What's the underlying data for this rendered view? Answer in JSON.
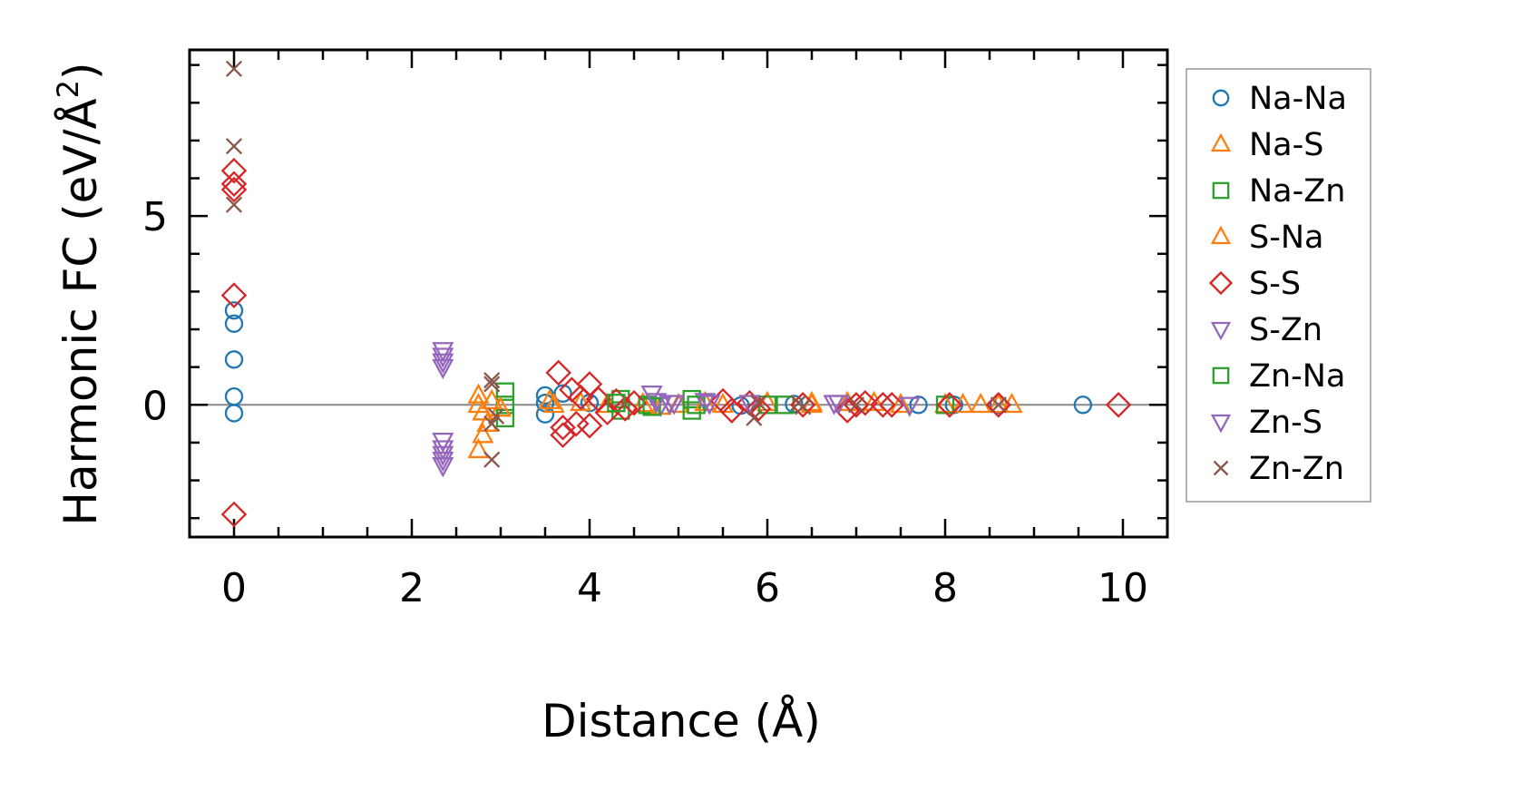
{
  "chart_data": {
    "type": "scatter",
    "xlabel": "Distance (Å)",
    "ylabel_main": "Harmonic FC (eV/Å",
    "ylabel_sup": "2",
    "ylabel_close": ")",
    "xlim": [
      -0.5,
      10.5
    ],
    "ylim": [
      -3.5,
      9.4
    ],
    "xticks": [
      0,
      2,
      4,
      6,
      8,
      10
    ],
    "yticks": [
      0,
      5
    ],
    "grid": false,
    "zero_line": true,
    "legend_position": "right",
    "series": [
      {
        "name": "Na-Na",
        "marker": "circle",
        "color": "#1f77b4",
        "x": [
          0,
          0,
          0,
          0,
          0,
          3.5,
          3.5,
          3.5,
          3.7,
          4.0,
          5.7,
          6.3,
          7.7,
          8.1,
          8.6,
          9.55
        ],
        "y": [
          2.5,
          2.15,
          1.2,
          0.22,
          -0.22,
          0.25,
          0.05,
          -0.25,
          0.3,
          0.05,
          -0.02,
          0.02,
          0.0,
          0.0,
          0.0,
          0.0
        ]
      },
      {
        "name": "Na-S",
        "marker": "triangle-up",
        "color": "#ff7f0e",
        "x": [
          2.75,
          2.75,
          2.8,
          2.75,
          2.85,
          2.8,
          3.55,
          3.9,
          4.2,
          4.6,
          5.0,
          5.5,
          6.0,
          6.5,
          6.9,
          7.5,
          8.0,
          8.2,
          8.75
        ],
        "y": [
          0.25,
          0.0,
          -0.2,
          -1.2,
          -0.5,
          -0.8,
          0.1,
          0.05,
          0.0,
          0.02,
          0.0,
          0.0,
          0.05,
          0.05,
          0.05,
          0.0,
          0.0,
          0.0,
          0.0
        ]
      },
      {
        "name": "Na-Zn",
        "marker": "square",
        "color": "#2ca02c",
        "x": [
          3.05,
          3.05,
          3.05,
          4.35,
          4.35,
          4.65,
          5.15,
          5.15,
          6.0,
          6.2,
          8.0
        ],
        "y": [
          0.35,
          0.0,
          -0.35,
          0.15,
          -0.15,
          0.0,
          0.15,
          -0.15,
          0.0,
          0.0,
          0.0
        ]
      },
      {
        "name": "S-Na",
        "marker": "triangle-up",
        "color": "#ff7f0e",
        "x": [
          2.9,
          3.0,
          3.6,
          4.8,
          5.3,
          6.5,
          7.2,
          8.4,
          8.6
        ],
        "y": [
          0.1,
          -0.1,
          0.0,
          -0.05,
          0.05,
          0.0,
          0.05,
          0.0,
          0.0
        ]
      },
      {
        "name": "S-S",
        "marker": "diamond",
        "color": "#d62728",
        "x": [
          0,
          0,
          0,
          0,
          0,
          3.65,
          3.7,
          3.7,
          3.8,
          3.85,
          3.9,
          4.0,
          4.0,
          4.1,
          4.2,
          4.3,
          4.4,
          4.5,
          5.5,
          5.6,
          5.8,
          5.9,
          6.4,
          6.9,
          7.0,
          7.1,
          7.3,
          7.4,
          8.05,
          8.6,
          9.95
        ],
        "y": [
          6.2,
          5.85,
          5.7,
          2.9,
          -2.9,
          0.85,
          -0.6,
          -0.8,
          0.4,
          -0.5,
          0.2,
          0.55,
          -0.55,
          0.15,
          -0.2,
          0.1,
          -0.1,
          0.05,
          0.1,
          -0.15,
          0.05,
          -0.1,
          0.0,
          -0.15,
          0.0,
          0.05,
          0.0,
          0.0,
          0.0,
          0.0,
          0.0
        ]
      },
      {
        "name": "S-Zn",
        "marker": "triangle-down",
        "color": "#9467bd",
        "x": [
          2.35,
          2.35,
          2.35,
          2.35,
          2.35,
          2.35,
          2.35,
          2.35,
          2.35,
          4.7,
          4.8,
          4.9,
          5.3,
          5.8,
          6.8,
          7.6
        ],
        "y": [
          1.45,
          1.3,
          1.15,
          1.0,
          -0.95,
          -1.15,
          -1.3,
          -1.45,
          -1.6,
          0.3,
          0.0,
          0.05,
          0.1,
          0.05,
          0.05,
          0.0
        ]
      },
      {
        "name": "Zn-Na",
        "marker": "square",
        "color": "#2ca02c",
        "x": [
          4.3,
          4.7,
          5.2
        ],
        "y": [
          0.05,
          -0.05,
          0.0
        ]
      },
      {
        "name": "Zn-S",
        "marker": "triangle-down",
        "color": "#9467bd",
        "x": [
          4.75,
          4.95,
          5.35,
          6.75
        ],
        "y": [
          0.1,
          0.05,
          0.05,
          0.05
        ]
      },
      {
        "name": "Zn-Zn",
        "marker": "x",
        "color": "#8c564b",
        "x": [
          0,
          0,
          0,
          2.9,
          2.9,
          2.9,
          2.9,
          2.95,
          5.85,
          5.9,
          6.35,
          6.4,
          7.0,
          8.6
        ],
        "y": [
          8.9,
          6.85,
          5.3,
          0.65,
          0.55,
          -0.5,
          -1.45,
          -0.3,
          -0.35,
          0.05,
          0.05,
          -0.05,
          0.0,
          0.0
        ]
      }
    ]
  }
}
